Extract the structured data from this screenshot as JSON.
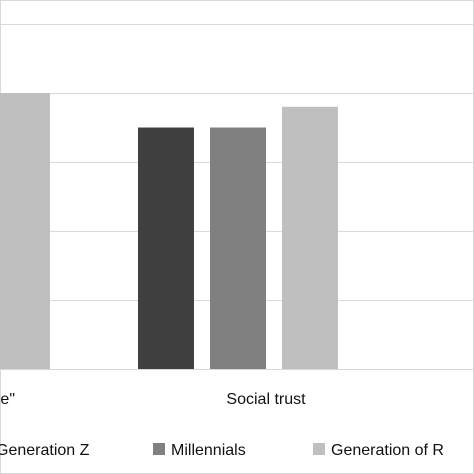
{
  "chart_data": {
    "type": "bar",
    "categories": [
      "e\"",
      "Social trust"
    ],
    "series": [
      {
        "name": "Generation Z",
        "color": "#404040",
        "values": [
          null,
          3.5
        ]
      },
      {
        "name": "Millennials",
        "color": "#808080",
        "values": [
          null,
          3.5
        ]
      },
      {
        "name": "Generation of R",
        "color": "#bfbfbf",
        "values": [
          4.0,
          3.8
        ]
      }
    ],
    "ylim": [
      0,
      5
    ],
    "grid": true,
    "legend_position": "bottom"
  }
}
